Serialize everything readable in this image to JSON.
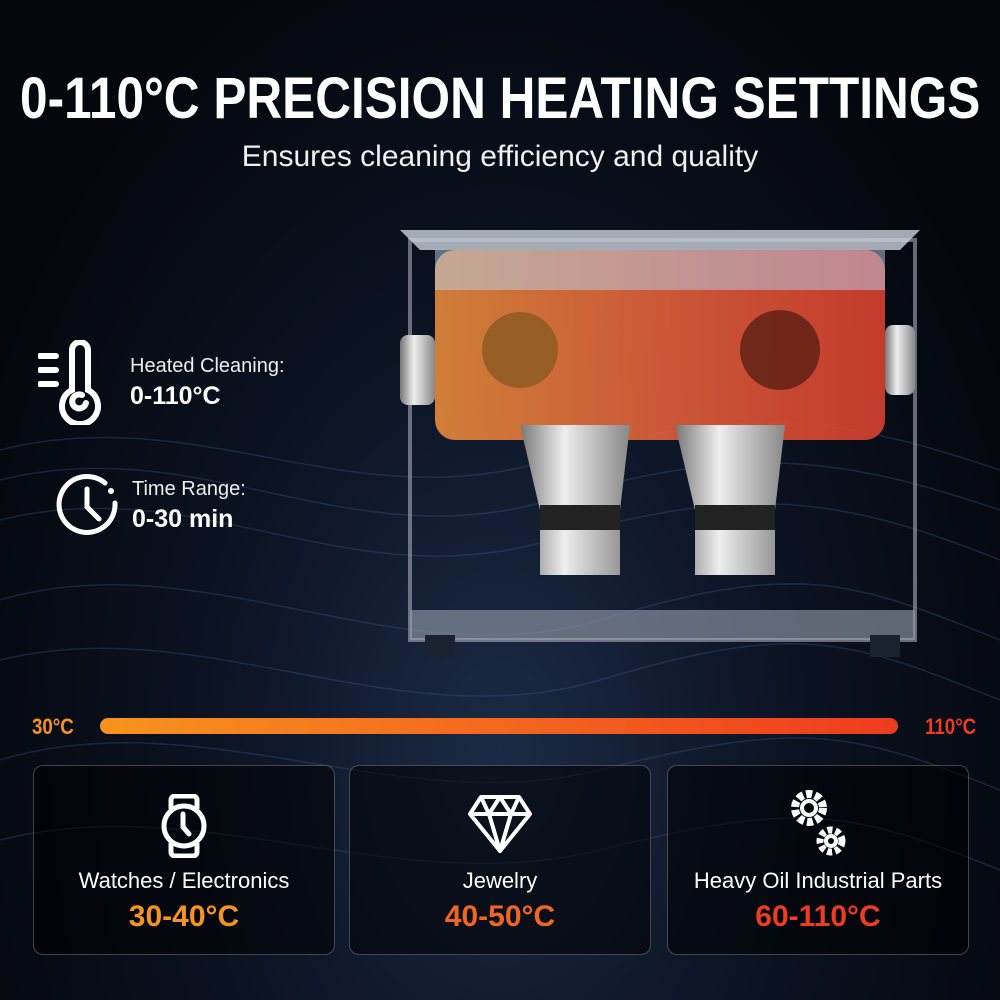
{
  "header": {
    "title": "0-110°C PRECISION HEATING SETTINGS",
    "subtitle": "Ensures cleaning efficiency and quality"
  },
  "features": [
    {
      "icon": "thermometer-icon",
      "label": "Heated Cleaning:",
      "value": "0-110°C"
    },
    {
      "icon": "timer-icon",
      "label": "Time Range:",
      "value": "0-30 min"
    }
  ],
  "scale": {
    "min_label": "30°C",
    "max_label": "110°C",
    "start_color": "#f7941d",
    "end_color": "#ef3b1f"
  },
  "cards": [
    {
      "icon": "watch-icon",
      "name": "Watches / Electronics",
      "range": "30-40°C",
      "color": "#f7941d"
    },
    {
      "icon": "diamond-icon",
      "name": "Jewelry",
      "range": "40-50°C",
      "color": "#f26522"
    },
    {
      "icon": "gears-icon",
      "name": "Heavy Oil Industrial Parts",
      "range": "60-110°C",
      "color": "#ef3b1f"
    }
  ]
}
